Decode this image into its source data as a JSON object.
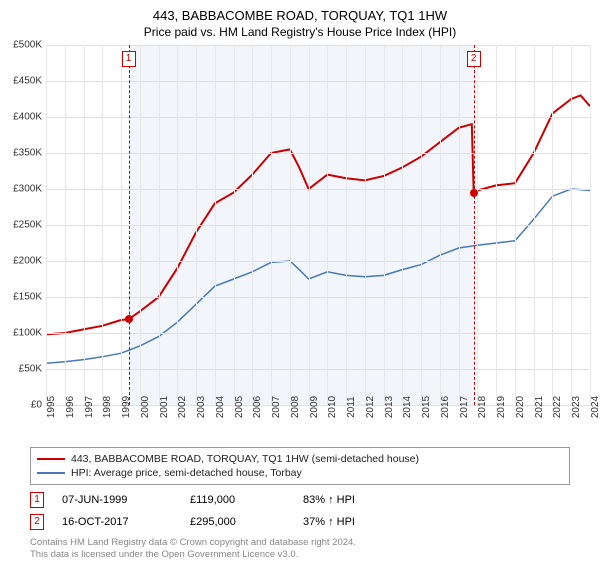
{
  "title": "443, BABBACOMBE ROAD, TORQUAY, TQ1 1HW",
  "subtitle": "Price paid vs. HM Land Registry's House Price Index (HPI)",
  "chart": {
    "type": "line",
    "background_color": "#ffffff",
    "plot_shade_color": "#f2f6fb",
    "grid_color": "#e0e0e0",
    "ylim": [
      0,
      500
    ],
    "ytick_step": 50,
    "y_prefix": "£",
    "y_suffix": "K",
    "years": [
      1995,
      1996,
      1997,
      1998,
      1999,
      2000,
      2001,
      2002,
      2003,
      2004,
      2005,
      2006,
      2007,
      2008,
      2009,
      2010,
      2011,
      2012,
      2013,
      2014,
      2015,
      2016,
      2017,
      2018,
      2019,
      2020,
      2021,
      2022,
      2023,
      2024
    ],
    "shade_start_year": 1999.4,
    "shade_end_year": 2017.8,
    "series": [
      {
        "name": "property",
        "label": "443, BABBACOMBE ROAD, TORQUAY, TQ1 1HW (semi-detached house)",
        "color": "#cc0000",
        "width": 2,
        "points": [
          [
            1995,
            98
          ],
          [
            1996,
            100
          ],
          [
            1997,
            105
          ],
          [
            1998,
            110
          ],
          [
            1999,
            118
          ],
          [
            1999.4,
            119
          ],
          [
            2000,
            130
          ],
          [
            2001,
            150
          ],
          [
            2002,
            190
          ],
          [
            2003,
            240
          ],
          [
            2004,
            280
          ],
          [
            2005,
            295
          ],
          [
            2006,
            320
          ],
          [
            2007,
            350
          ],
          [
            2008,
            355
          ],
          [
            2008.5,
            330
          ],
          [
            2009,
            300
          ],
          [
            2010,
            320
          ],
          [
            2011,
            315
          ],
          [
            2012,
            312
          ],
          [
            2013,
            318
          ],
          [
            2014,
            330
          ],
          [
            2015,
            345
          ],
          [
            2016,
            365
          ],
          [
            2017,
            385
          ],
          [
            2017.7,
            390
          ],
          [
            2017.8,
            295
          ],
          [
            2018,
            298
          ],
          [
            2019,
            305
          ],
          [
            2020,
            308
          ],
          [
            2021,
            350
          ],
          [
            2022,
            405
          ],
          [
            2023,
            425
          ],
          [
            2023.5,
            430
          ],
          [
            2024,
            415
          ]
        ]
      },
      {
        "name": "hpi",
        "label": "HPI: Average price, semi-detached house, Torbay",
        "color": "#4878b8",
        "width": 1.5,
        "points": [
          [
            1995,
            58
          ],
          [
            1996,
            60
          ],
          [
            1997,
            63
          ],
          [
            1998,
            67
          ],
          [
            1999,
            72
          ],
          [
            2000,
            82
          ],
          [
            2001,
            95
          ],
          [
            2002,
            115
          ],
          [
            2003,
            140
          ],
          [
            2004,
            165
          ],
          [
            2005,
            175
          ],
          [
            2006,
            185
          ],
          [
            2007,
            198
          ],
          [
            2008,
            200
          ],
          [
            2008.5,
            188
          ],
          [
            2009,
            175
          ],
          [
            2010,
            185
          ],
          [
            2011,
            180
          ],
          [
            2012,
            178
          ],
          [
            2013,
            180
          ],
          [
            2014,
            188
          ],
          [
            2015,
            195
          ],
          [
            2016,
            208
          ],
          [
            2017,
            218
          ],
          [
            2018,
            222
          ],
          [
            2019,
            225
          ],
          [
            2020,
            228
          ],
          [
            2021,
            258
          ],
          [
            2022,
            290
          ],
          [
            2023,
            300
          ],
          [
            2024,
            298
          ]
        ]
      }
    ],
    "markers": [
      {
        "id": "1",
        "year": 1999.4,
        "value": 119,
        "color": "#cc0000"
      },
      {
        "id": "2",
        "year": 2017.8,
        "value": 295,
        "color": "#cc0000"
      }
    ]
  },
  "legend": {
    "items": [
      {
        "color": "#cc0000",
        "label": "443, BABBACOMBE ROAD, TORQUAY, TQ1 1HW (semi-detached house)"
      },
      {
        "color": "#4878b8",
        "label": "HPI: Average price, semi-detached house, Torbay"
      }
    ]
  },
  "sales": [
    {
      "marker": "1",
      "date": "07-JUN-1999",
      "price": "£119,000",
      "pct": "83% ↑ HPI"
    },
    {
      "marker": "2",
      "date": "16-OCT-2017",
      "price": "£295,000",
      "pct": "37% ↑ HPI"
    }
  ],
  "attribution": {
    "line1": "Contains HM Land Registry data © Crown copyright and database right 2024.",
    "line2": "This data is licensed under the Open Government Licence v3.0."
  }
}
